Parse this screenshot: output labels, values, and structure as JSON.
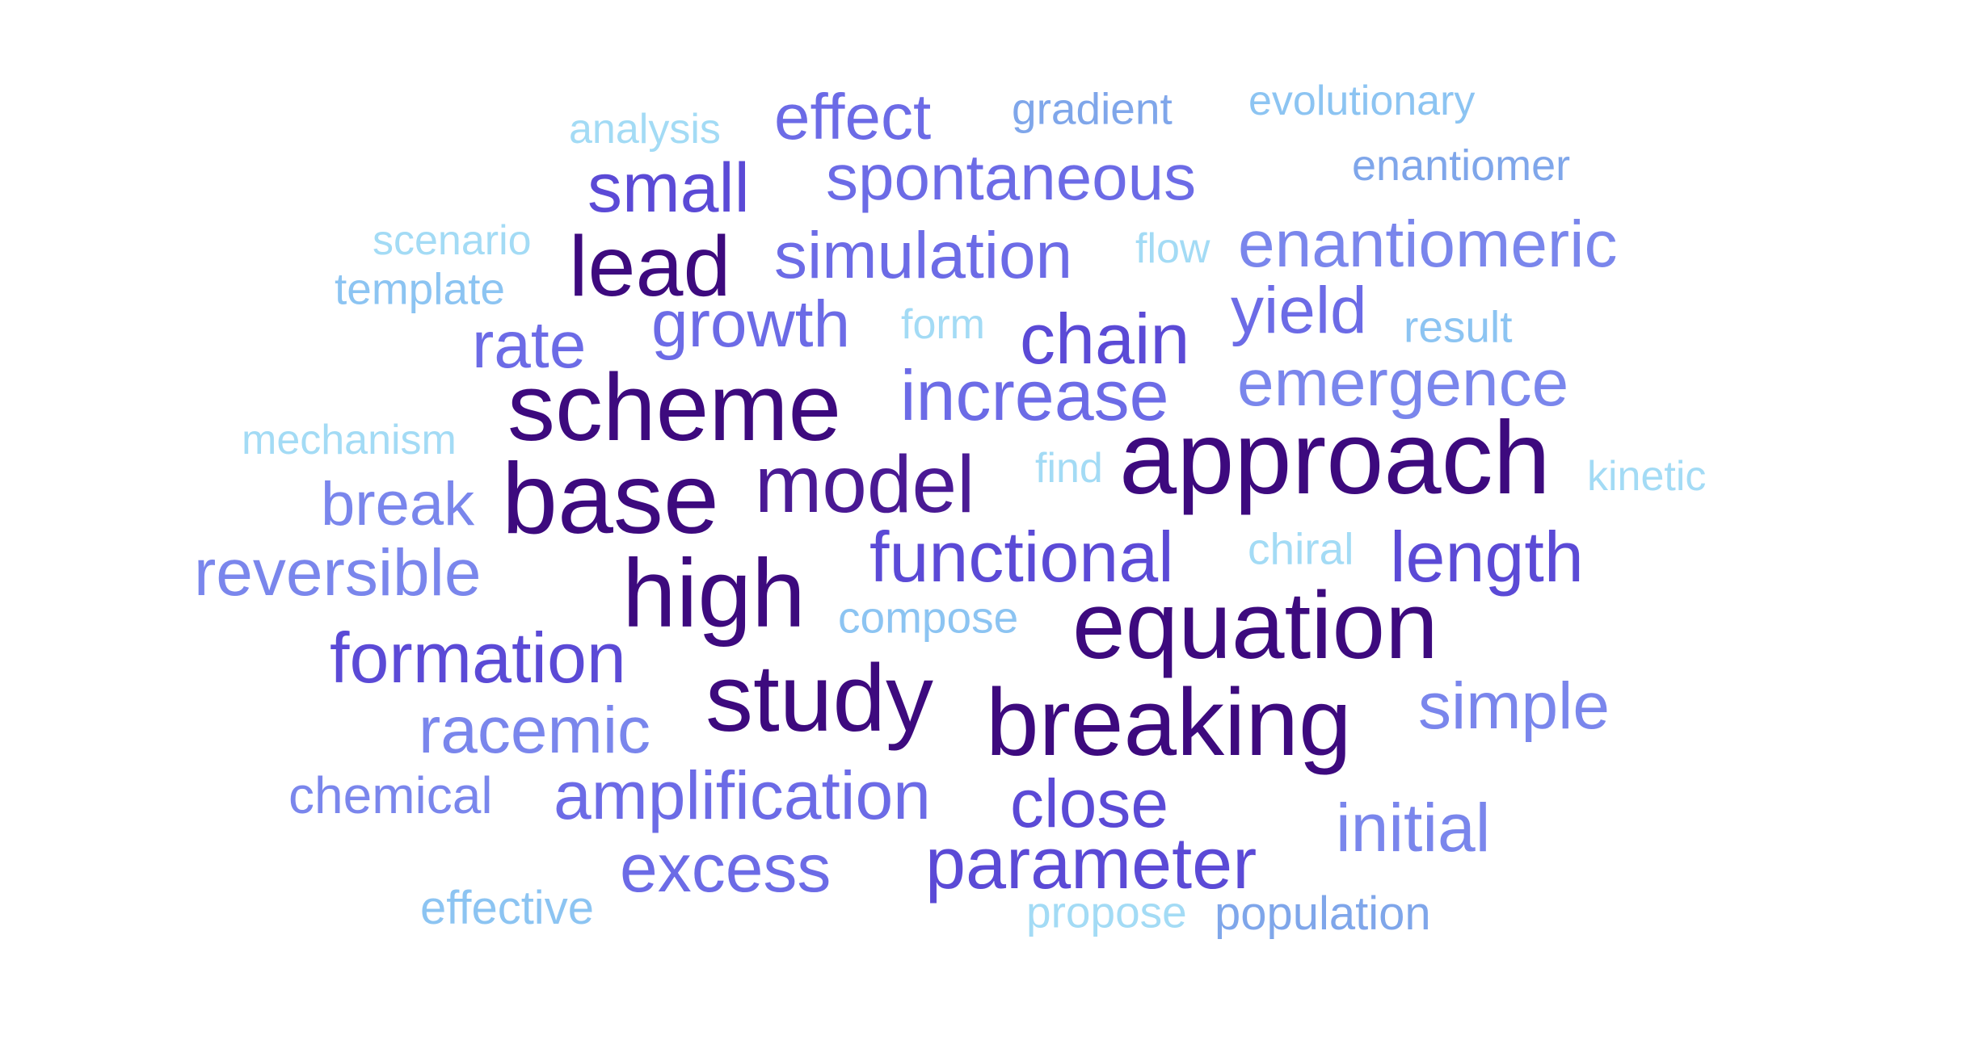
{
  "colors": {
    "background": "#ffffff",
    "darkest": "#3d0a7e",
    "dark": "#4a1a94",
    "indigo": "#5b4ad6",
    "periwinkle": "#6c6be6",
    "blue": "#7a86ec",
    "light_blue": "#7fa6ea",
    "sky": "#8cc4f2",
    "pale_sky": "#a3dbf5"
  },
  "words": [
    {
      "text": "effect",
      "color": "#6c6be6"
    },
    {
      "text": "gradient",
      "color": "#7fa6ea"
    },
    {
      "text": "evolutionary",
      "color": "#8cc4f2"
    },
    {
      "text": "analysis",
      "color": "#a3dbf5"
    },
    {
      "text": "small",
      "color": "#5b4ad6"
    },
    {
      "text": "spontaneous",
      "color": "#6c6be6"
    },
    {
      "text": "enantiomer",
      "color": "#7fa6ea"
    },
    {
      "text": "scenario",
      "color": "#a3dbf5"
    },
    {
      "text": "lead",
      "color": "#3d0a7e"
    },
    {
      "text": "simulation",
      "color": "#6c6be6"
    },
    {
      "text": "flow",
      "color": "#a3dbf5"
    },
    {
      "text": "enantiomeric",
      "color": "#7a86ec"
    },
    {
      "text": "template",
      "color": "#8cc4f2"
    },
    {
      "text": "yield",
      "color": "#6c6be6"
    },
    {
      "text": "rate",
      "color": "#6c6be6"
    },
    {
      "text": "growth",
      "color": "#6c6be6"
    },
    {
      "text": "form",
      "color": "#a3dbf5"
    },
    {
      "text": "chain",
      "color": "#5b4ad6"
    },
    {
      "text": "result",
      "color": "#8cc4f2"
    },
    {
      "text": "scheme",
      "color": "#3d0a7e"
    },
    {
      "text": "increase",
      "color": "#6c6be6"
    },
    {
      "text": "emergence",
      "color": "#7a86ec"
    },
    {
      "text": "mechanism",
      "color": "#a3dbf5"
    },
    {
      "text": "approach",
      "color": "#3d0a7e"
    },
    {
      "text": "base",
      "color": "#3d0a7e"
    },
    {
      "text": "model",
      "color": "#4a1a94"
    },
    {
      "text": "find",
      "color": "#a3dbf5"
    },
    {
      "text": "kinetic",
      "color": "#a3dbf5"
    },
    {
      "text": "break",
      "color": "#7a86ec"
    },
    {
      "text": "reversible",
      "color": "#7a86ec"
    },
    {
      "text": "functional",
      "color": "#5b4ad6"
    },
    {
      "text": "chiral",
      "color": "#a3dbf5"
    },
    {
      "text": "length",
      "color": "#5b4ad6"
    },
    {
      "text": "high",
      "color": "#3d0a7e"
    },
    {
      "text": "equation",
      "color": "#3d0a7e"
    },
    {
      "text": "compose",
      "color": "#8cc4f2"
    },
    {
      "text": "formation",
      "color": "#5b4ad6"
    },
    {
      "text": "study",
      "color": "#3d0a7e"
    },
    {
      "text": "simple",
      "color": "#7a86ec"
    },
    {
      "text": "breaking",
      "color": "#3d0a7e"
    },
    {
      "text": "racemic",
      "color": "#7a86ec"
    },
    {
      "text": "chemical",
      "color": "#7a86ec"
    },
    {
      "text": "amplification",
      "color": "#6c6be6"
    },
    {
      "text": "close",
      "color": "#5b4ad6"
    },
    {
      "text": "initial",
      "color": "#7a86ec"
    },
    {
      "text": "excess",
      "color": "#6c6be6"
    },
    {
      "text": "parameter",
      "color": "#5b4ad6"
    },
    {
      "text": "effective",
      "color": "#8cc4f2"
    },
    {
      "text": "propose",
      "color": "#a3dbf5"
    },
    {
      "text": "population",
      "color": "#7fa6ea"
    }
  ]
}
